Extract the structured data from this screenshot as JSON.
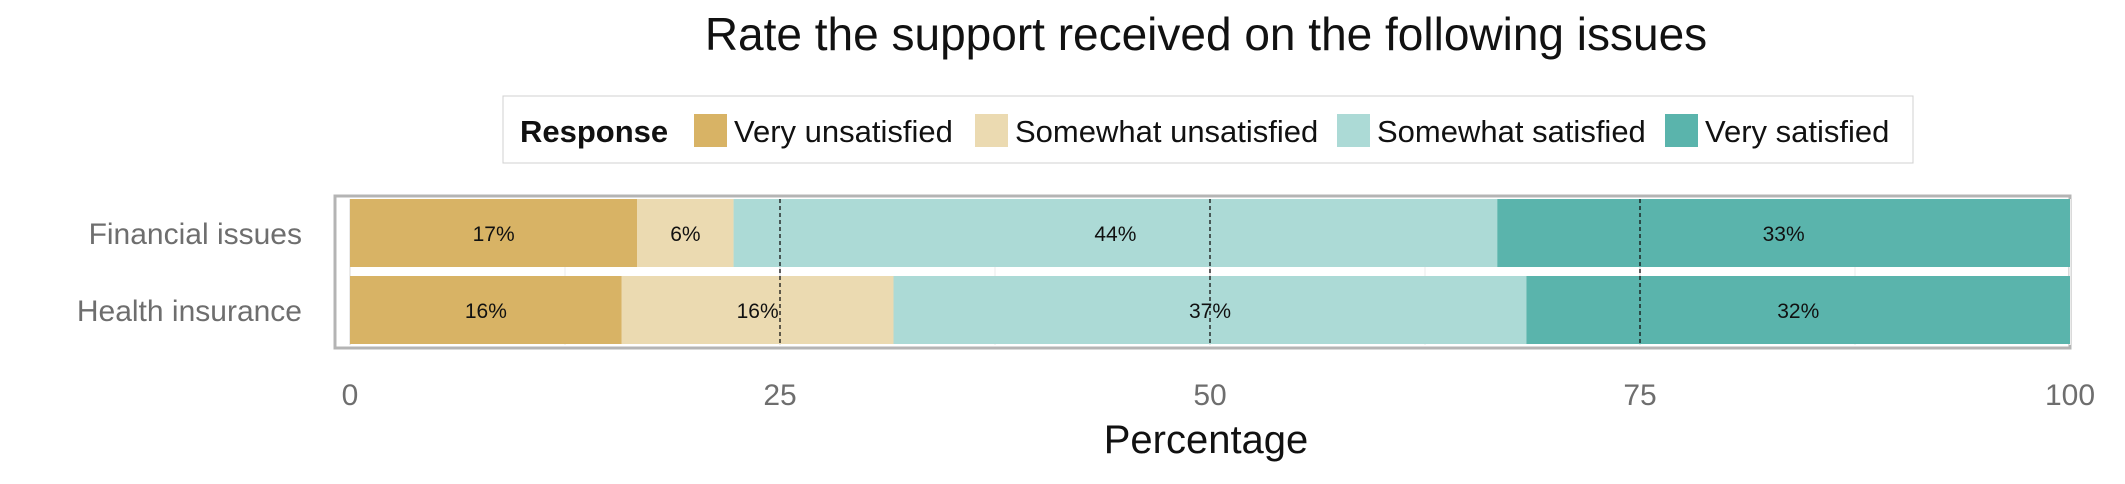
{
  "chart_data": {
    "type": "bar",
    "orientation": "horizontal",
    "stacked": true,
    "title": "Rate the support received on the following issues",
    "xlabel": "Percentage",
    "ylabel": "",
    "xlim": [
      0,
      100
    ],
    "x_ticks": [
      0,
      25,
      50,
      75,
      100
    ],
    "reference_lines": [
      25,
      50,
      75
    ],
    "grid": true,
    "legend": {
      "title": "Response",
      "position": "top"
    },
    "categories": [
      "Financial issues",
      "Health insurance"
    ],
    "series": [
      {
        "name": "Very unsatisfied",
        "color": "#d8b365",
        "values": [
          16.7,
          15.8
        ],
        "labels": [
          "17%",
          "16%"
        ]
      },
      {
        "name": "Somewhat unsatisfied",
        "color": "#ebdab1",
        "values": [
          5.6,
          15.8
        ],
        "labels": [
          "6%",
          "16%"
        ]
      },
      {
        "name": "Somewhat satisfied",
        "color": "#acdad6",
        "values": [
          44.4,
          36.8
        ],
        "labels": [
          "44%",
          "37%"
        ]
      },
      {
        "name": "Very satisfied",
        "color": "#5ab4ac",
        "values": [
          33.3,
          31.6
        ],
        "labels": [
          "33%",
          "32%"
        ]
      }
    ]
  }
}
